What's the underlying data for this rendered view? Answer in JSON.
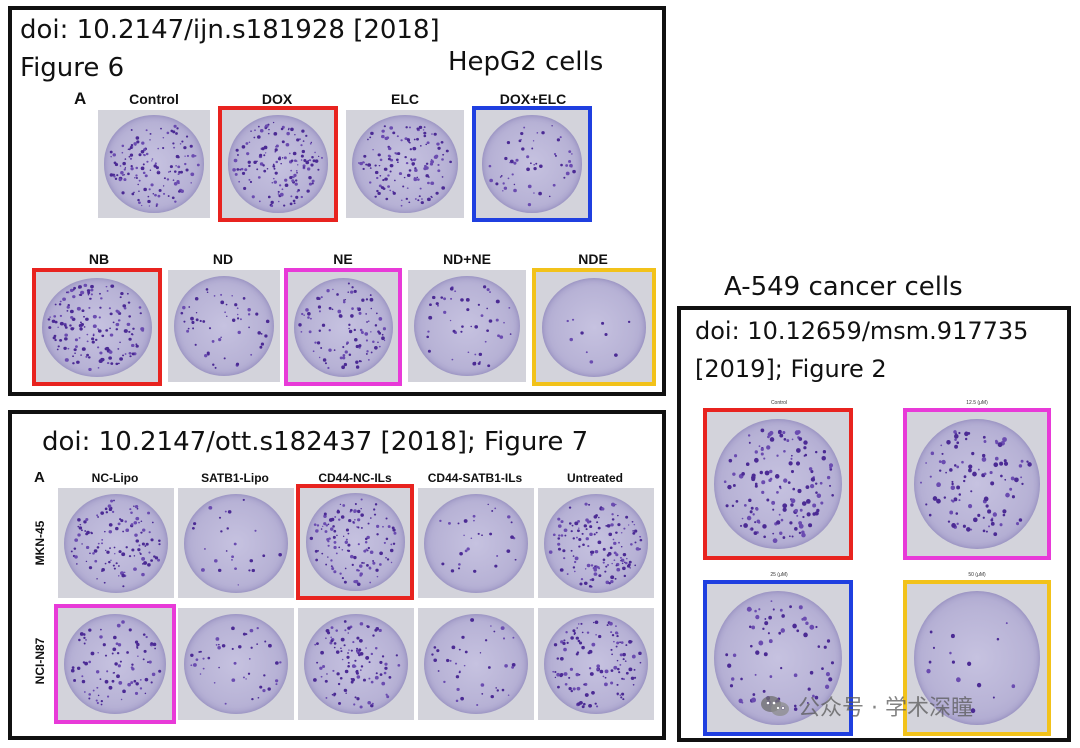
{
  "panel1": {
    "title_line1": "doi: 10.2147/ijn.s181928 [2018]",
    "title_line2": "Figure 6",
    "cell_line": "HepG2 cells",
    "sublabel": "A",
    "row1": [
      "Control",
      "DOX",
      "ELC",
      "DOX+ELC"
    ],
    "row2": [
      "NB",
      "ND",
      "NE",
      "ND+NE",
      "NDE"
    ]
  },
  "panel2": {
    "title": "doi: 10.2147/ott.s182437 [2018]; Figure 7",
    "sublabel": "A",
    "columns": [
      "NC-Lipo",
      "SATB1-Lipo",
      "CD44-NC-ILs",
      "CD44-SATB1-ILs",
      "Untreated"
    ],
    "rows": [
      "MKN-45",
      "NCI-N87"
    ]
  },
  "panel3": {
    "outer_label": "A-549 cancer cells",
    "title_line1": "doi: 10.12659/msm.917735",
    "title_line2": "[2019]; Figure 2",
    "wells": [
      "Control",
      "12.5 (μM)",
      "25 (μM)",
      "50 (μM)"
    ]
  },
  "watermark": "公众号 · 学术深瞳",
  "highlight_colors": {
    "red": "#e8231f",
    "blue": "#1f3fe0",
    "pink": "#e83ad8",
    "yellow": "#f2c21a"
  }
}
